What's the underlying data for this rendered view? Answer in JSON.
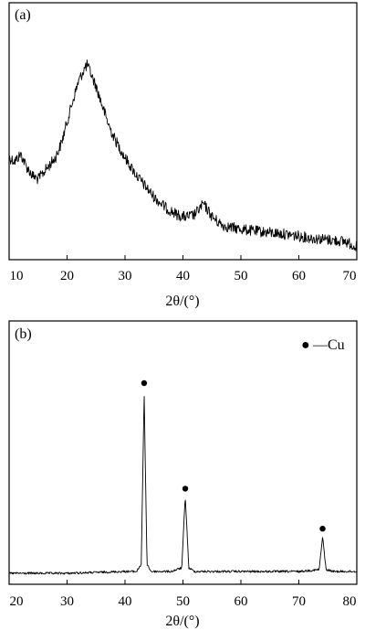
{
  "chart_data": [
    {
      "type": "line",
      "panel_label": "(a)",
      "xlabel": "2θ/(°)",
      "ylabel": "",
      "xlim": [
        10,
        70
      ],
      "xticks": [
        10,
        20,
        30,
        40,
        50,
        60,
        70
      ],
      "yticks_shown": false,
      "grid": false,
      "series": [
        {
          "x": [
            10,
            11,
            12,
            13,
            14,
            15,
            16,
            17,
            18,
            19,
            20,
            21,
            22,
            23,
            23.5,
            24,
            25,
            26,
            27,
            28,
            29,
            30,
            31,
            32,
            33,
            34,
            35,
            36,
            37,
            38,
            39,
            40,
            41,
            42,
            43,
            43.5,
            44,
            45,
            46,
            47,
            48,
            50,
            52,
            55,
            58,
            60,
            62,
            65,
            68,
            70
          ],
          "y": [
            0.5,
            0.48,
            0.52,
            0.45,
            0.4,
            0.38,
            0.42,
            0.46,
            0.5,
            0.58,
            0.7,
            0.82,
            0.93,
            1.0,
            1.02,
            0.98,
            0.9,
            0.8,
            0.7,
            0.62,
            0.56,
            0.5,
            0.45,
            0.4,
            0.36,
            0.32,
            0.28,
            0.25,
            0.22,
            0.2,
            0.18,
            0.17,
            0.17,
            0.18,
            0.22,
            0.24,
            0.22,
            0.17,
            0.14,
            0.12,
            0.11,
            0.1,
            0.09,
            0.08,
            0.07,
            0.06,
            0.05,
            0.04,
            0.03,
            0.0
          ]
        }
      ]
    },
    {
      "type": "line",
      "panel_label": "(b)",
      "xlabel": "2θ/(°)",
      "ylabel": "",
      "xlim": [
        20,
        80
      ],
      "xticks": [
        20,
        30,
        40,
        50,
        60,
        70,
        80
      ],
      "yticks_shown": false,
      "grid": false,
      "legend": {
        "position": "top-right",
        "marker": "●",
        "label": "—Cu"
      },
      "peaks": [
        {
          "x": 43.3,
          "y": 1.0,
          "marker": "●"
        },
        {
          "x": 50.4,
          "y": 0.42,
          "marker": "●"
        },
        {
          "x": 74.1,
          "y": 0.2,
          "marker": "●"
        }
      ],
      "series": [
        {
          "x": [
            20,
            30,
            40,
            42,
            42.8,
            43.1,
            43.3,
            43.5,
            43.8,
            44.5,
            48,
            49.8,
            50.2,
            50.4,
            50.6,
            51,
            52,
            60,
            70,
            73.5,
            73.9,
            74.1,
            74.3,
            74.7,
            76,
            80
          ],
          "y": [
            0.0,
            0.0,
            0.01,
            0.01,
            0.05,
            0.6,
            1.0,
            0.6,
            0.05,
            0.01,
            0.01,
            0.03,
            0.3,
            0.42,
            0.3,
            0.03,
            0.01,
            0.01,
            0.01,
            0.02,
            0.14,
            0.2,
            0.14,
            0.02,
            0.01,
            0.01
          ]
        }
      ]
    }
  ]
}
